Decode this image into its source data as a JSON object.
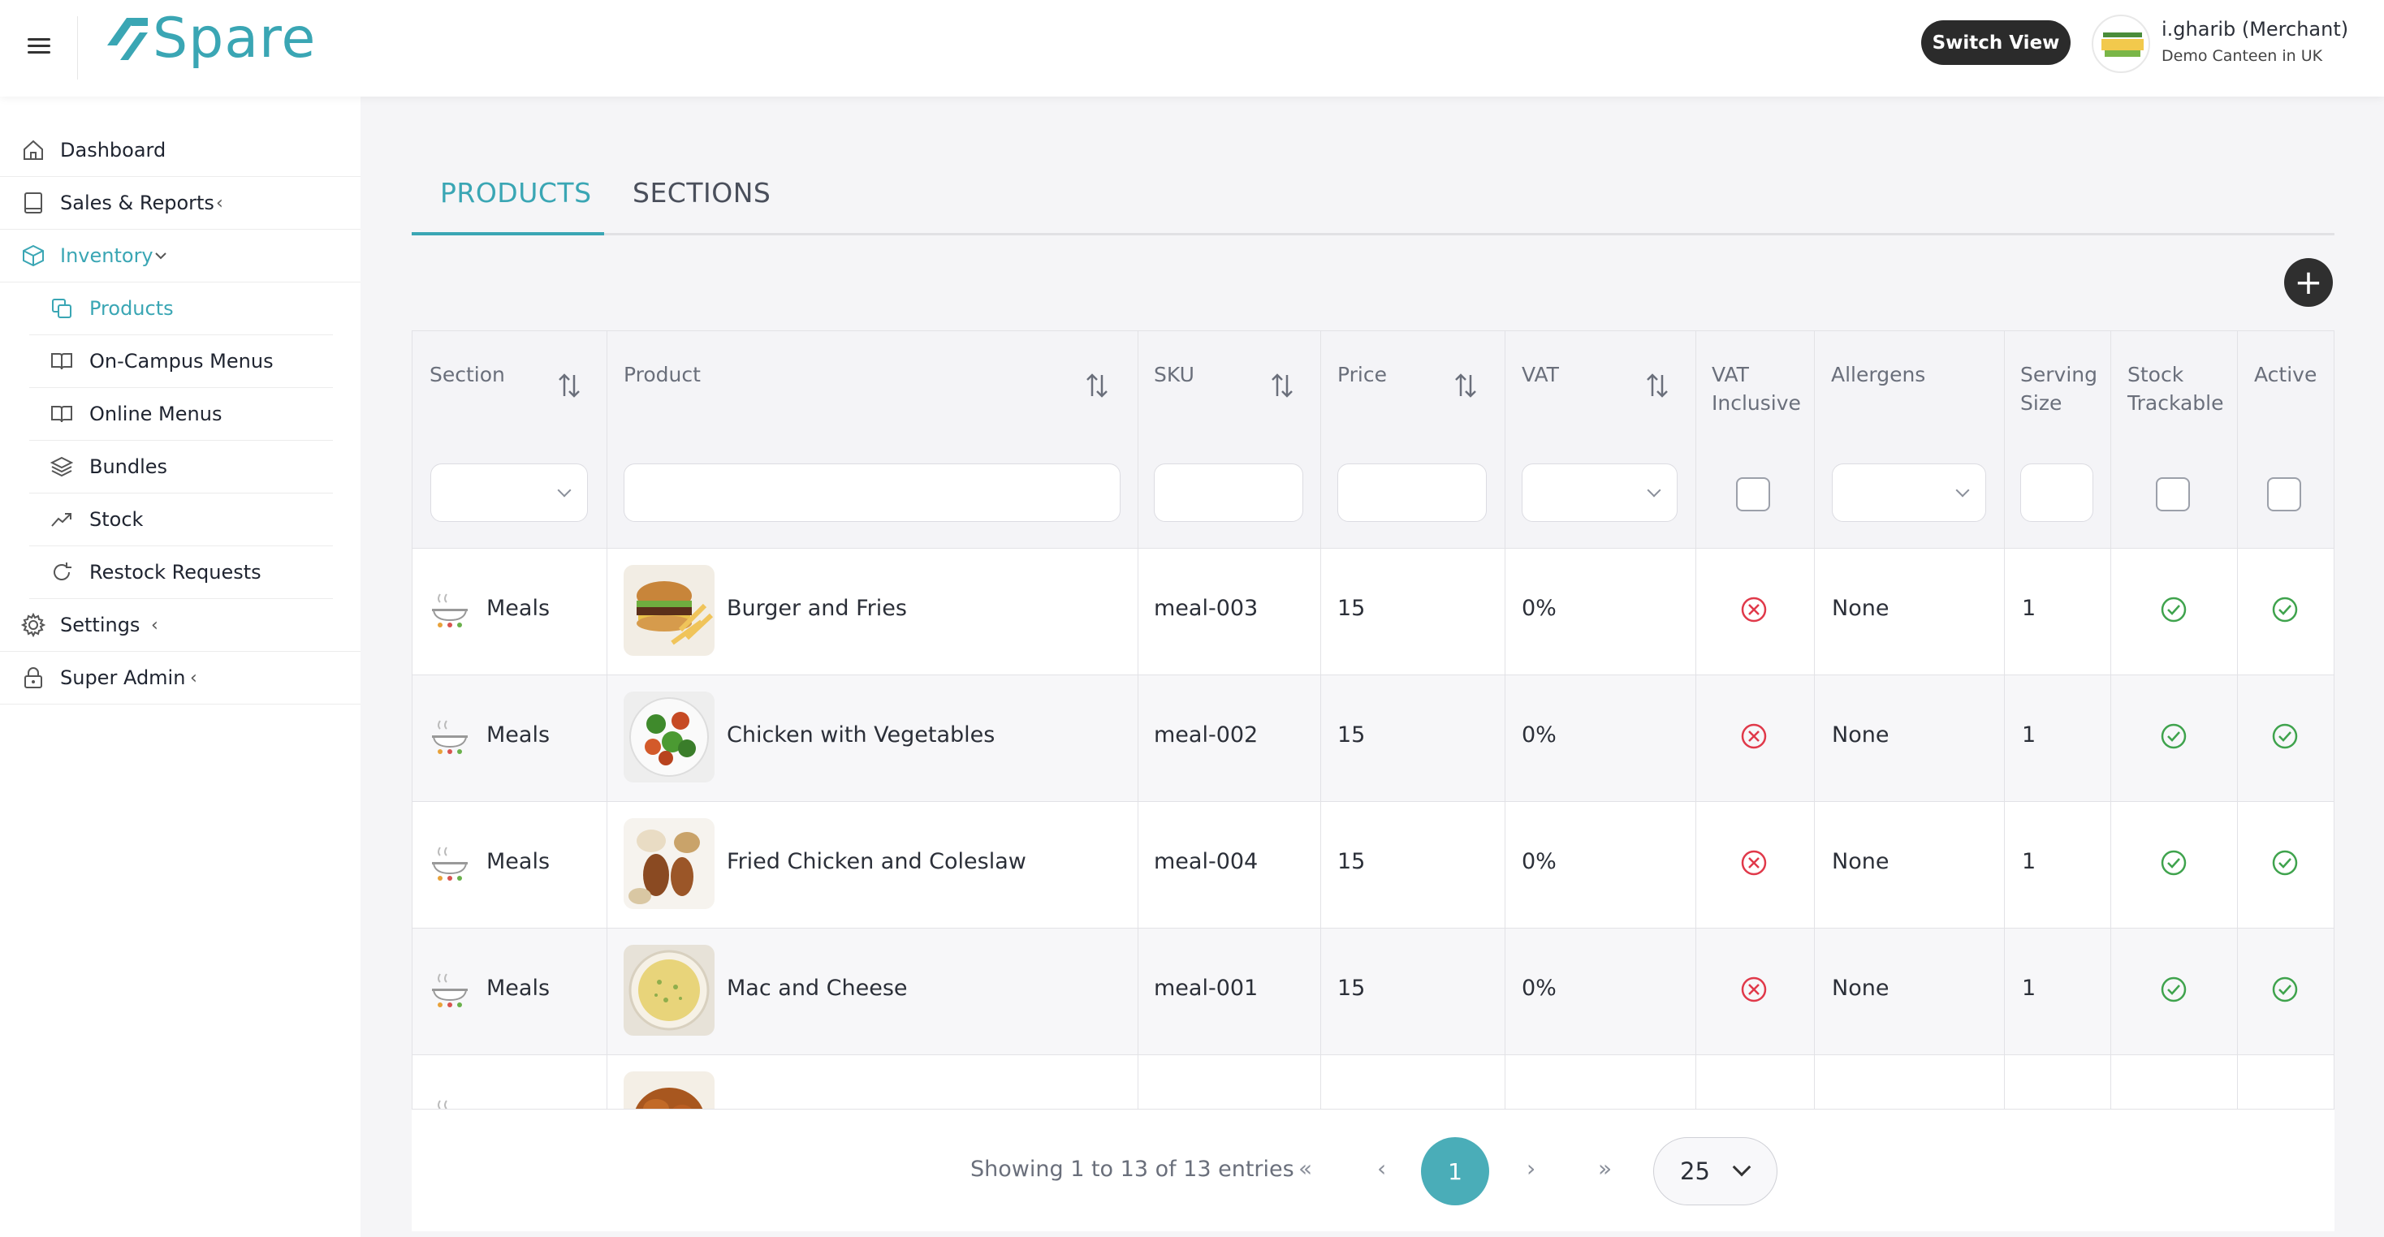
{
  "header": {
    "logo_text": "Spare",
    "switch_view_label": "Switch View",
    "user_name": "i.gharib (Merchant)",
    "user_subtitle": "Demo Canteen in UK"
  },
  "sidebar": {
    "items": [
      {
        "label": "Dashboard",
        "icon": "home-icon"
      },
      {
        "label": "Sales & Reports",
        "icon": "book-icon",
        "chevron": "‹"
      },
      {
        "label": "Inventory",
        "icon": "box-icon",
        "chevron": "⌄",
        "active": true
      },
      {
        "label": "Settings",
        "icon": "gear-icon",
        "chevron": "‹"
      },
      {
        "label": "Super Admin",
        "icon": "lock-icon",
        "chevron": "‹"
      }
    ],
    "subitems": [
      {
        "label": "Products",
        "icon": "copy-icon",
        "active": true
      },
      {
        "label": "On-Campus Menus",
        "icon": "open-book-icon"
      },
      {
        "label": "Online Menus",
        "icon": "open-book-icon"
      },
      {
        "label": "Bundles",
        "icon": "layers-icon"
      },
      {
        "label": "Stock",
        "icon": "trend-up-icon"
      },
      {
        "label": "Restock Requests",
        "icon": "refresh-icon"
      }
    ]
  },
  "tabs": [
    {
      "label": "PRODUCTS",
      "active": true
    },
    {
      "label": "SECTIONS",
      "active": false
    }
  ],
  "add_button_label": "+",
  "table": {
    "headers": {
      "section": "Section",
      "product": "Product",
      "sku": "SKU",
      "price": "Price",
      "vat": "VAT",
      "vat_inclusive": "VAT Inclusive",
      "allergens": "Allergens",
      "serving_size": "Serving Size",
      "stock_trackable": "Stock Trackable",
      "active": "Active"
    },
    "rows": [
      {
        "section": "Meals",
        "product": "Burger and Fries",
        "sku": "meal-003",
        "price": "15",
        "vat": "0%",
        "vat_inclusive": false,
        "allergens": "None",
        "serving_size": "1",
        "stock_trackable": true,
        "active": true
      },
      {
        "section": "Meals",
        "product": "Chicken with Vegetables",
        "sku": "meal-002",
        "price": "15",
        "vat": "0%",
        "vat_inclusive": false,
        "allergens": "None",
        "serving_size": "1",
        "stock_trackable": true,
        "active": true
      },
      {
        "section": "Meals",
        "product": "Fried Chicken and Coleslaw",
        "sku": "meal-004",
        "price": "15",
        "vat": "0%",
        "vat_inclusive": false,
        "allergens": "None",
        "serving_size": "1",
        "stock_trackable": true,
        "active": true
      },
      {
        "section": "Meals",
        "product": "Mac and Cheese",
        "sku": "meal-001",
        "price": "15",
        "vat": "0%",
        "vat_inclusive": false,
        "allergens": "None",
        "serving_size": "1",
        "stock_trackable": true,
        "active": true
      }
    ]
  },
  "pagination": {
    "info": "Showing 1 to 13 of 13 entries",
    "first": "«",
    "prev": "‹",
    "current": "1",
    "next": "›",
    "last": "»",
    "page_size": "25"
  },
  "colors": {
    "accent": "#3aa6b4",
    "error": "#e0394a",
    "success": "#3fa34d"
  }
}
